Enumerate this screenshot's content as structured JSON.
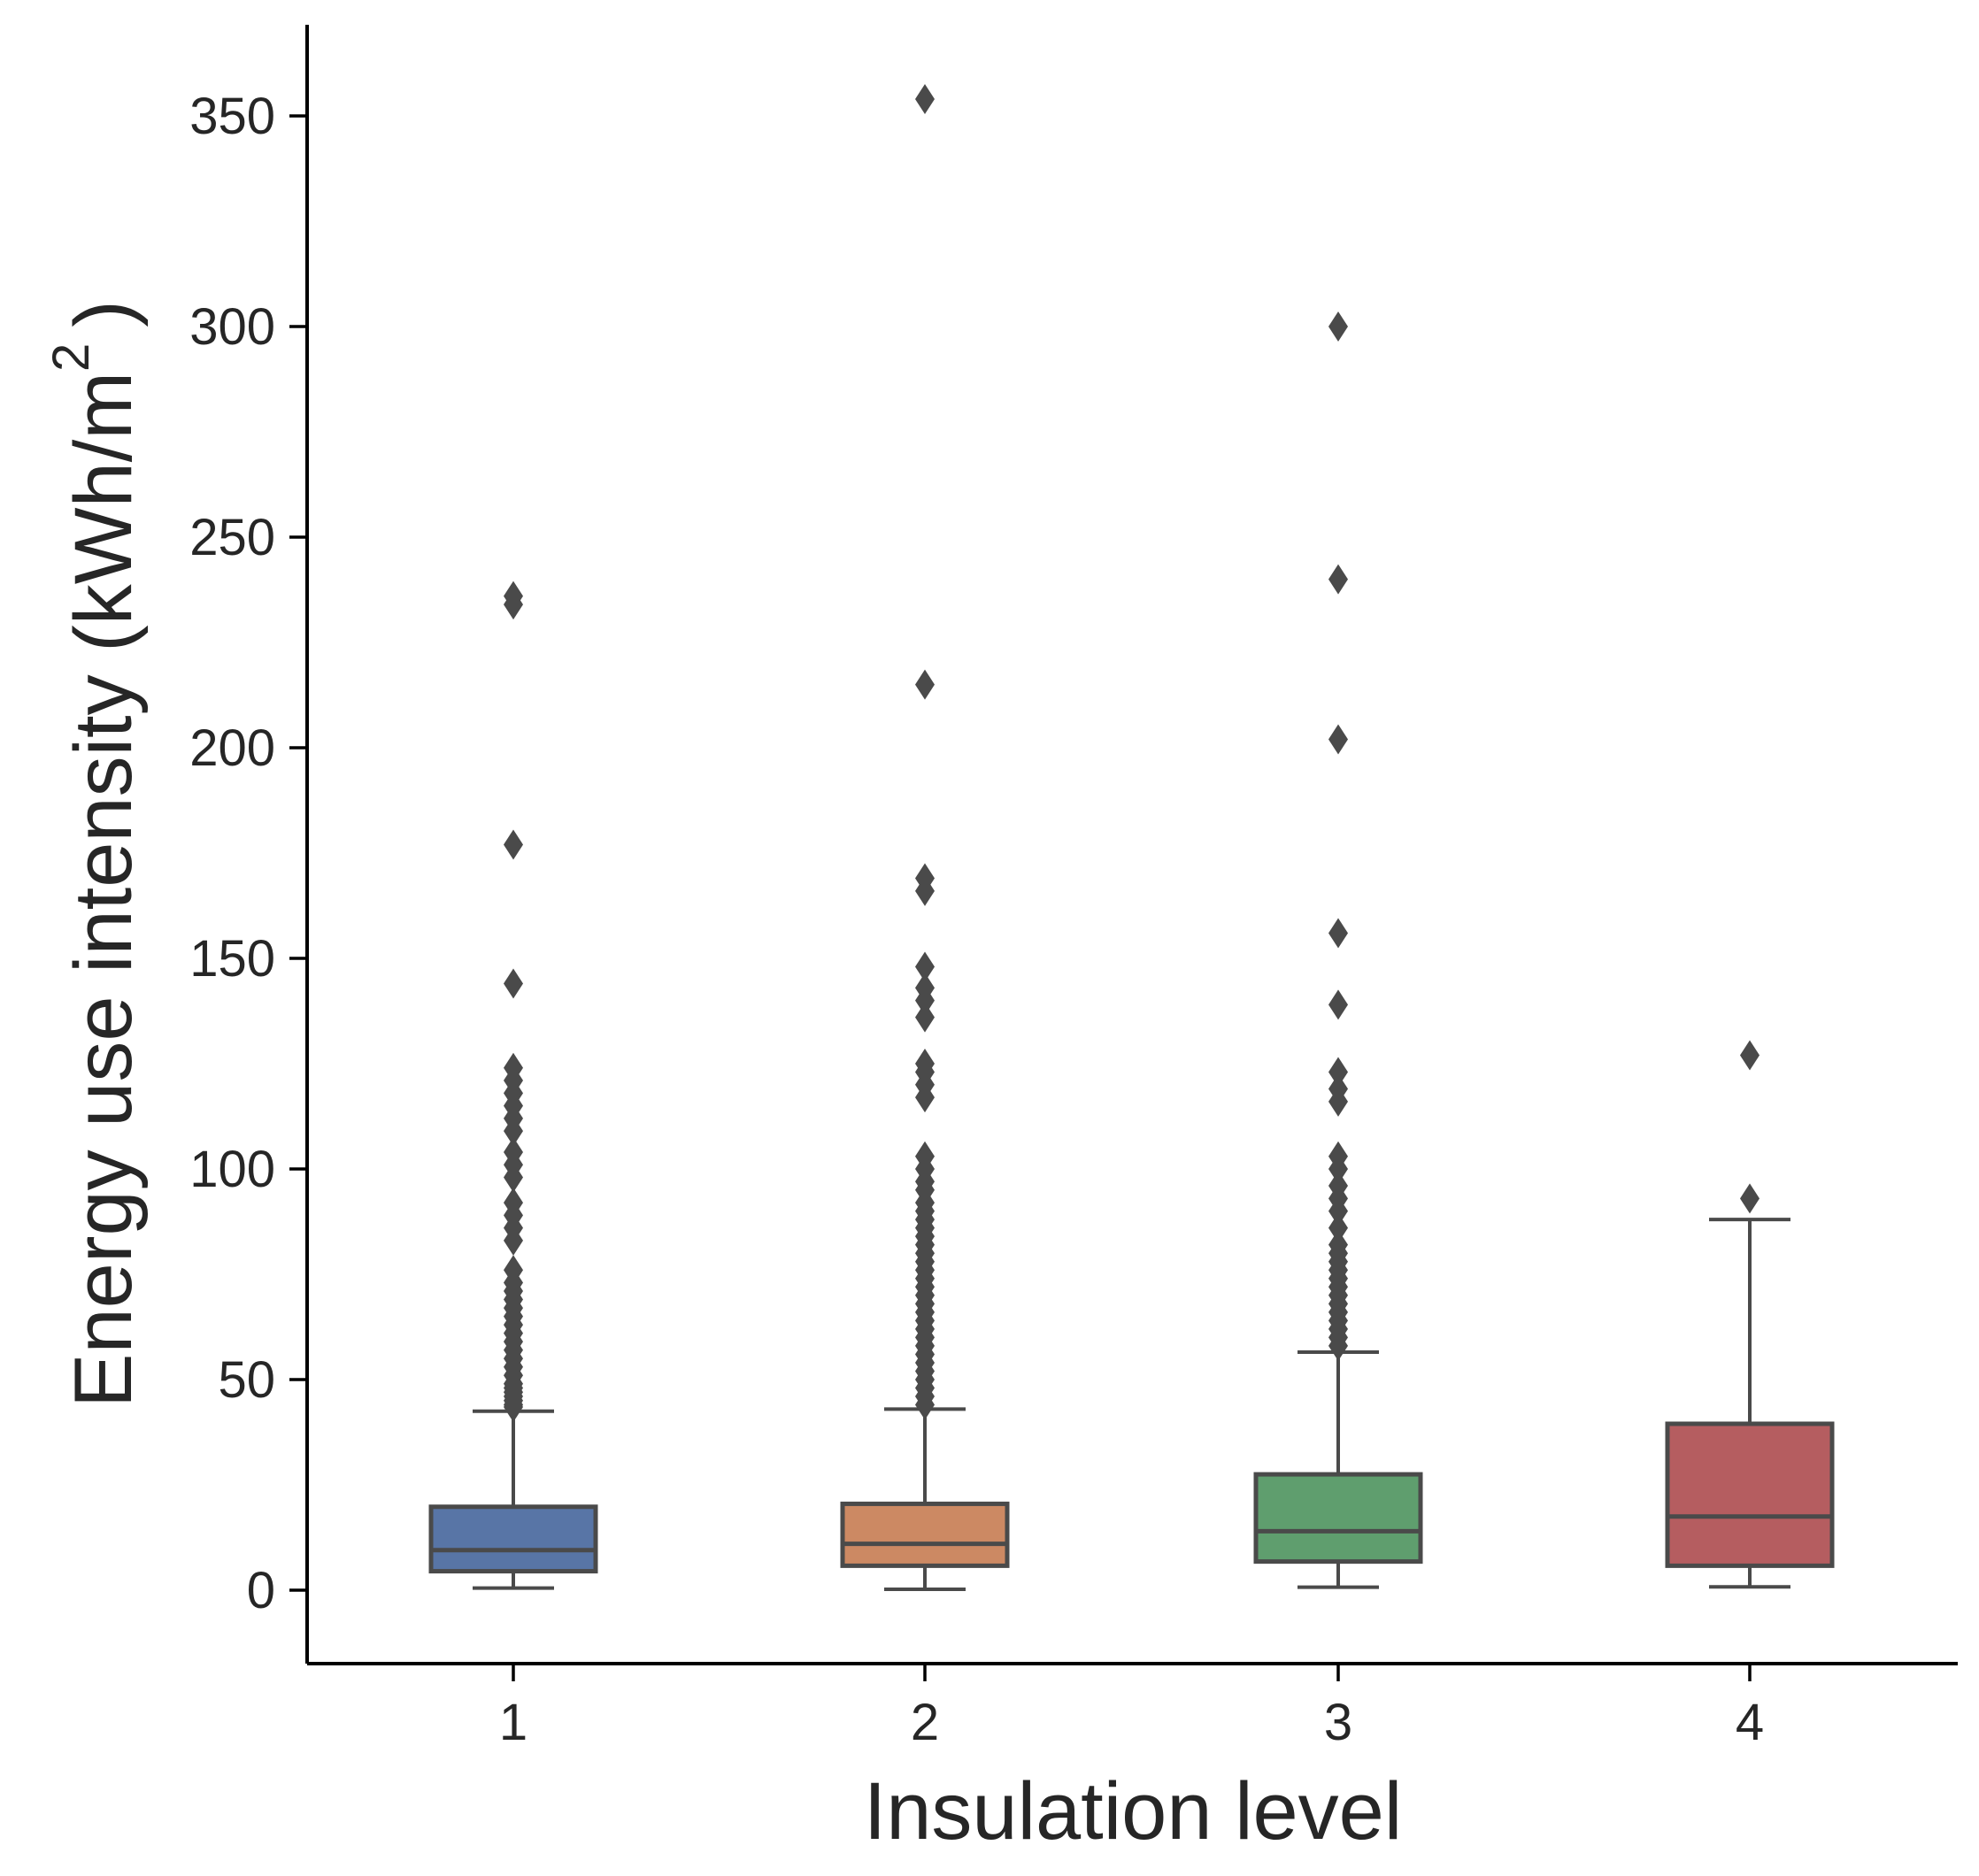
{
  "chart_data": {
    "type": "box",
    "title": "",
    "xlabel": "Insulation level",
    "ylabel": {
      "text": "Energy use intensity (kWh/m",
      "superscript": "2",
      "closing": ")"
    },
    "ylim": [
      -18,
      372
    ],
    "yticks": [
      0,
      50,
      100,
      150,
      200,
      250,
      300,
      350
    ],
    "ytick_labels": [
      "0",
      "50",
      "100",
      "150",
      "200",
      "250",
      "300",
      "350"
    ],
    "categories": [
      "1",
      "2",
      "3",
      "4"
    ],
    "line_color": "#4a4a4a",
    "axis_color": "#000000",
    "boxes": [
      {
        "category": "1",
        "color": "#5875a6",
        "whisker_low": 0.5,
        "q1": 4.5,
        "median": 9.5,
        "q3": 19.8,
        "whisker_high": 42.5,
        "outliers": [
          236,
          234,
          177,
          144,
          124,
          121,
          118,
          115,
          112,
          109,
          104,
          101,
          98,
          92,
          89,
          86,
          83,
          76,
          73,
          71,
          69,
          67,
          65,
          63,
          61,
          59,
          57,
          55,
          53,
          51,
          49,
          48,
          47,
          46,
          45,
          44,
          43.5
        ]
      },
      {
        "category": "2",
        "color": "#cc8963",
        "whisker_low": 0.2,
        "q1": 5.8,
        "median": 11,
        "q3": 20.5,
        "whisker_high": 43,
        "outliers": [
          354,
          215,
          169,
          166,
          148,
          143,
          140,
          136,
          125,
          123,
          120,
          117,
          103,
          100,
          97,
          95,
          92,
          90,
          88,
          86,
          84,
          82,
          80,
          78,
          76,
          74,
          72,
          70,
          68,
          66,
          64,
          62,
          60,
          58,
          56,
          54,
          52,
          50,
          48,
          46,
          44
        ]
      },
      {
        "category": "3",
        "color": "#5f9e6e",
        "whisker_low": 0.7,
        "q1": 6.8,
        "median": 14,
        "q3": 27.5,
        "whisker_high": 56.5,
        "outliers": [
          300,
          240,
          202,
          156,
          139,
          123,
          119,
          116,
          103,
          100,
          96,
          93,
          90,
          86,
          82,
          80,
          78,
          76,
          74,
          72,
          70,
          68,
          66,
          64,
          62,
          60,
          58
        ]
      },
      {
        "category": "4",
        "color": "#b55d60",
        "whisker_low": 0.8,
        "q1": 5.8,
        "median": 17.5,
        "q3": 39.5,
        "whisker_high": 88,
        "outliers": [
          127,
          93
        ]
      }
    ]
  }
}
